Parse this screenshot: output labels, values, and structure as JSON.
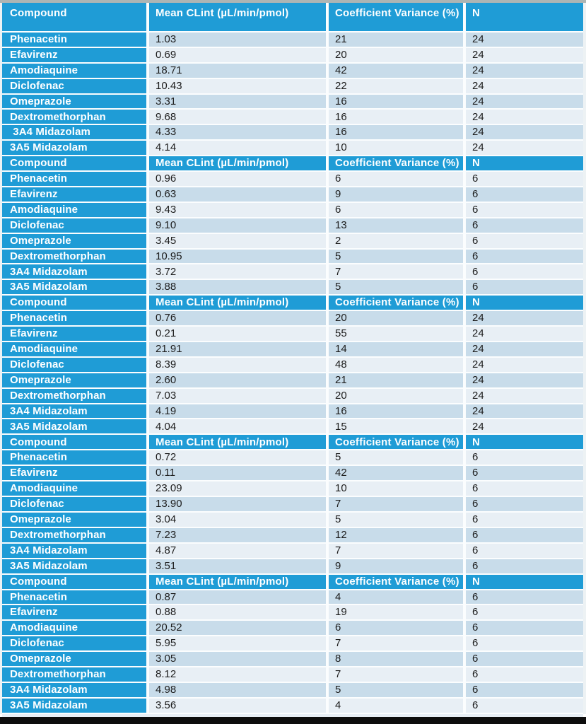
{
  "colors": {
    "header_blue": "#1f9cd6",
    "stripe_dark": "#c8dcea",
    "stripe_light": "#e8eff5",
    "divider_white": "#fbfdfe",
    "text_dark": "#1c1c1c",
    "top_strip_gray": "#adb5b4",
    "bottom_bar_black": "#0d0d0d"
  },
  "columns": [
    {
      "label": "Compound"
    },
    {
      "label": "Mean CLint (µL/min/pmol)"
    },
    {
      "label": "Coefficient Variance (%)"
    },
    {
      "label": "N"
    }
  ],
  "tables": [
    {
      "rows": [
        {
          "compound": "Phenacetin",
          "mean_clint": "1.03",
          "coefficient_variance": "21",
          "n": "24"
        },
        {
          "compound": "Efavirenz",
          "mean_clint": "0.69",
          "coefficient_variance": "20",
          "n": "24"
        },
        {
          "compound": "Amodiaquine",
          "mean_clint": "18.71",
          "coefficient_variance": "42",
          "n": "24"
        },
        {
          "compound": "Diclofenac",
          "mean_clint": "10.43",
          "coefficient_variance": "22",
          "n": "24"
        },
        {
          "compound": "Omeprazole",
          "mean_clint": "3.31",
          "coefficient_variance": "16",
          "n": "24"
        },
        {
          "compound": "Dextromethorphan",
          "mean_clint": "9.68",
          "coefficient_variance": "16",
          "n": "24"
        },
        {
          "compound": " 3A4 Midazolam",
          "mean_clint": "4.33",
          "coefficient_variance": "16",
          "n": "24"
        },
        {
          "compound": "3A5 Midazolam",
          "mean_clint": "4.14",
          "coefficient_variance": "10",
          "n": "24"
        }
      ]
    },
    {
      "rows": [
        {
          "compound": "Phenacetin",
          "mean_clint": "0.96",
          "coefficient_variance": "6",
          "n": "6"
        },
        {
          "compound": "Efavirenz",
          "mean_clint": "0.63",
          "coefficient_variance": "9",
          "n": "6"
        },
        {
          "compound": "Amodiaquine",
          "mean_clint": "9.43",
          "coefficient_variance": "6",
          "n": "6"
        },
        {
          "compound": "Diclofenac",
          "mean_clint": "9.10",
          "coefficient_variance": "13",
          "n": "6"
        },
        {
          "compound": "Omeprazole",
          "mean_clint": "3.45",
          "coefficient_variance": "2",
          "n": "6"
        },
        {
          "compound": "Dextromethorphan",
          "mean_clint": "10.95",
          "coefficient_variance": "5",
          "n": "6"
        },
        {
          "compound": "3A4 Midazolam",
          "mean_clint": "3.72",
          "coefficient_variance": "7",
          "n": "6"
        },
        {
          "compound": "3A5 Midazolam",
          "mean_clint": "3.88",
          "coefficient_variance": "5",
          "n": "6"
        }
      ]
    },
    {
      "rows": [
        {
          "compound": "Phenacetin",
          "mean_clint": "0.76",
          "coefficient_variance": "20",
          "n": "24"
        },
        {
          "compound": "Efavirenz",
          "mean_clint": "0.21",
          "coefficient_variance": "55",
          "n": "24"
        },
        {
          "compound": "Amodiaquine",
          "mean_clint": "21.91",
          "coefficient_variance": "14",
          "n": "24"
        },
        {
          "compound": "Diclofenac",
          "mean_clint": "8.39",
          "coefficient_variance": "48",
          "n": "24"
        },
        {
          "compound": "Omeprazole",
          "mean_clint": "2.60",
          "coefficient_variance": "21",
          "n": "24"
        },
        {
          "compound": "Dextromethorphan",
          "mean_clint": "7.03",
          "coefficient_variance": "20",
          "n": "24"
        },
        {
          "compound": "3A4 Midazolam",
          "mean_clint": "4.19",
          "coefficient_variance": "16",
          "n": "24"
        },
        {
          "compound": "3A5 Midazolam",
          "mean_clint": "4.04",
          "coefficient_variance": "15",
          "n": "24"
        }
      ]
    },
    {
      "rows": [
        {
          "compound": "Phenacetin",
          "mean_clint": "0.72",
          "coefficient_variance": "5",
          "n": "6"
        },
        {
          "compound": "Efavirenz",
          "mean_clint": "0.11",
          "coefficient_variance": "42",
          "n": "6"
        },
        {
          "compound": "Amodiaquine",
          "mean_clint": "23.09",
          "coefficient_variance": "10",
          "n": "6"
        },
        {
          "compound": "Diclofenac",
          "mean_clint": "13.90",
          "coefficient_variance": "7",
          "n": "6"
        },
        {
          "compound": "Omeprazole",
          "mean_clint": "3.04",
          "coefficient_variance": "5",
          "n": "6"
        },
        {
          "compound": "Dextromethorphan",
          "mean_clint": "7.23",
          "coefficient_variance": "12",
          "n": "6"
        },
        {
          "compound": "3A4 Midazolam",
          "mean_clint": "4.87",
          "coefficient_variance": "7",
          "n": "6"
        },
        {
          "compound": "3A5 Midazolam",
          "mean_clint": "3.51",
          "coefficient_variance": "9",
          "n": "6"
        }
      ]
    },
    {
      "rows": [
        {
          "compound": "Phenacetin",
          "mean_clint": "0.87",
          "coefficient_variance": "4",
          "n": "6"
        },
        {
          "compound": "Efavirenz",
          "mean_clint": "0.88",
          "coefficient_variance": "19",
          "n": "6"
        },
        {
          "compound": "Amodiaquine",
          "mean_clint": "20.52",
          "coefficient_variance": "6",
          "n": "6"
        },
        {
          "compound": "Diclofenac",
          "mean_clint": "5.95",
          "coefficient_variance": "7",
          "n": "6"
        },
        {
          "compound": "Omeprazole",
          "mean_clint": "3.05",
          "coefficient_variance": "8",
          "n": "6"
        },
        {
          "compound": "Dextromethorphan",
          "mean_clint": "8.12",
          "coefficient_variance": "7",
          "n": "6"
        },
        {
          "compound": "3A4 Midazolam",
          "mean_clint": "4.98",
          "coefficient_variance": "5",
          "n": "6"
        },
        {
          "compound": "3A5 Midazolam",
          "mean_clint": "3.56",
          "coefficient_variance": "4",
          "n": "6"
        }
      ]
    }
  ]
}
